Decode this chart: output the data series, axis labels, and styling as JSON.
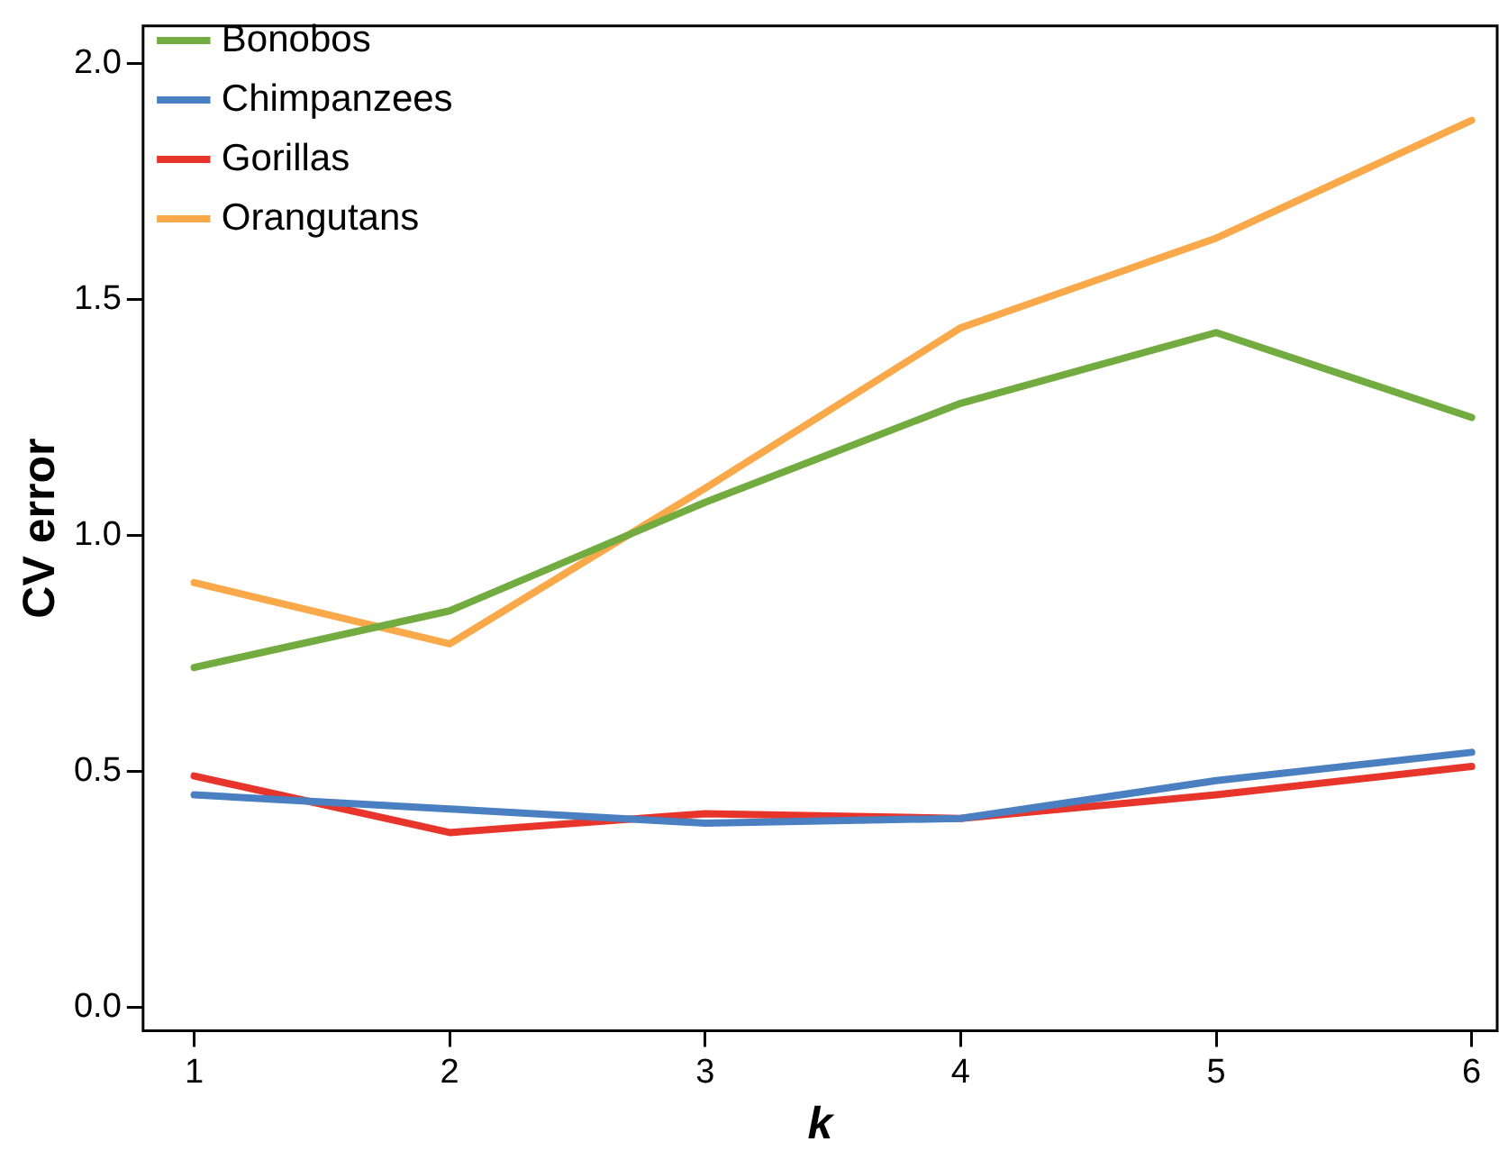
{
  "chart_data": {
    "type": "line",
    "xlabel": "k",
    "ylabel": "CV error",
    "x": [
      1,
      2,
      3,
      4,
      5,
      6
    ],
    "series": [
      {
        "name": "Bonobos",
        "color": "#72ab3f",
        "values": [
          0.72,
          0.84,
          1.07,
          1.28,
          1.43,
          1.25
        ]
      },
      {
        "name": "Chimpanzees",
        "color": "#4a7fc1",
        "values": [
          0.45,
          0.42,
          0.39,
          0.4,
          0.48,
          0.54
        ]
      },
      {
        "name": "Gorillas",
        "color": "#e8352b",
        "values": [
          0.49,
          0.37,
          0.41,
          0.4,
          0.45,
          0.51
        ]
      },
      {
        "name": "Orangutans",
        "color": "#f9a94a",
        "values": [
          0.9,
          0.77,
          1.1,
          1.44,
          1.63,
          1.88
        ]
      }
    ],
    "xlim": [
      0.8,
      6.1
    ],
    "xticks": [
      1,
      2,
      3,
      4,
      5,
      6
    ],
    "ylim": [
      -0.05,
      2.08
    ],
    "yticks": [
      {
        "value": 0,
        "label": "0.0"
      },
      {
        "value": 0.5,
        "label": "0.5"
      },
      {
        "value": 1,
        "label": "1.0"
      },
      {
        "value": 1.5,
        "label": "1.5"
      },
      {
        "value": 2,
        "label": "2.0"
      }
    ],
    "grid": false,
    "legend": "top left",
    "marker": "none",
    "line_style": "solid"
  }
}
